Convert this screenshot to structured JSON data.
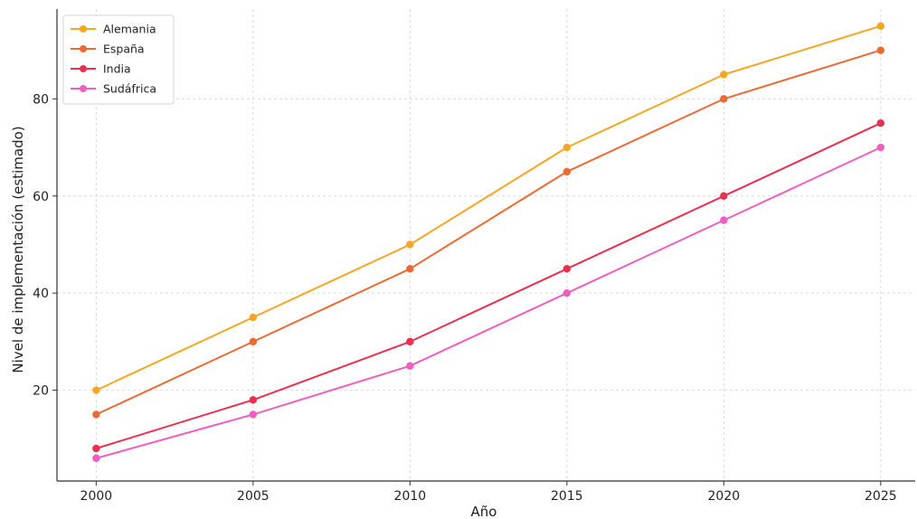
{
  "chart_data": {
    "type": "line",
    "title": "",
    "xlabel": "Año",
    "ylabel": "Nivel de implementación (estimado)",
    "x": [
      2000,
      2005,
      2010,
      2015,
      2020,
      2025
    ],
    "x_ticks": [
      "2000",
      "2005",
      "2010",
      "2015",
      "2020",
      "2025"
    ],
    "y_ticks": [
      "20",
      "40",
      "60",
      "80"
    ],
    "xlim": [
      1998.75,
      2026.1
    ],
    "ylim": [
      1.3,
      98.5
    ],
    "grid": true,
    "legend_position": "top-left",
    "series": [
      {
        "name": "Alemania",
        "color": "#f5a623",
        "values": [
          20,
          35,
          50,
          70,
          85,
          95
        ]
      },
      {
        "name": "España",
        "color": "#ec6a33",
        "values": [
          15,
          30,
          45,
          65,
          80,
          90
        ]
      },
      {
        "name": "India",
        "color": "#e8304f",
        "values": [
          8,
          18,
          30,
          45,
          60,
          75
        ]
      },
      {
        "name": "Sudáfrica",
        "color": "#ee5fbf",
        "values": [
          6,
          15,
          25,
          40,
          55,
          70
        ]
      }
    ]
  }
}
